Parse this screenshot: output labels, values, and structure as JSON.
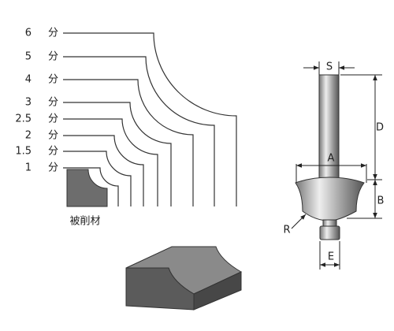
{
  "profiles": [
    {
      "size": "6",
      "unit": "分"
    },
    {
      "size": "5",
      "unit": "分"
    },
    {
      "size": "4",
      "unit": "分"
    },
    {
      "size": "3",
      "unit": "分"
    },
    {
      "size": "2.5",
      "unit": "分"
    },
    {
      "size": "2",
      "unit": "分"
    },
    {
      "size": "1.5",
      "unit": "分"
    },
    {
      "size": "1",
      "unit": "分"
    }
  ],
  "workpiece_label": "被削材",
  "dimensions": {
    "s": "S",
    "d": "D",
    "a": "A",
    "b": "B",
    "r": "R",
    "e": "E"
  }
}
